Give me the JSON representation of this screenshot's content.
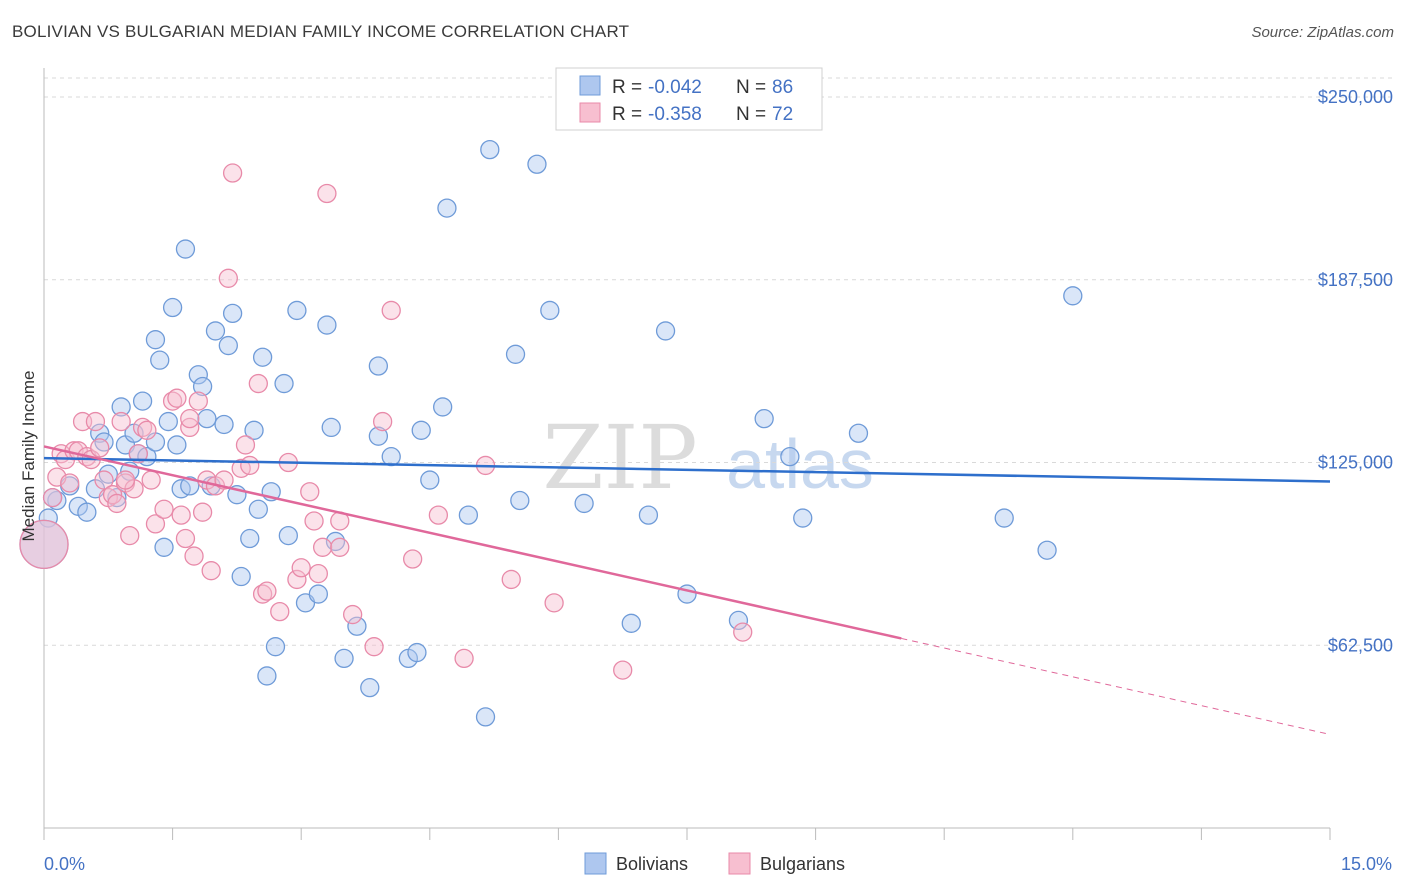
{
  "title": "BOLIVIAN VS BULGARIAN MEDIAN FAMILY INCOME CORRELATION CHART",
  "source": "Source: ZipAtlas.com",
  "watermark": {
    "zip": "ZIP",
    "atlas": "atlas"
  },
  "colors": {
    "blue_fill": "#aec7ef",
    "blue_stroke": "#6f9bd8",
    "blue_line": "#2e6fcc",
    "pink_fill": "#f7bfd0",
    "pink_stroke": "#e88aa9",
    "pink_line": "#e0689a",
    "grid": "#d9d9d9",
    "axis_text": "#4472c4"
  },
  "legend": {
    "rows": [
      {
        "r_label": "R =",
        "r_value": "-0.042",
        "n_label": "N =",
        "n_value": "86"
      },
      {
        "r_label": "R =",
        "r_value": "-0.358",
        "n_label": "N =",
        "n_value": "72"
      }
    ]
  },
  "bottom_legend": {
    "series1": "Bolivians",
    "series2": "Bulgarians"
  },
  "chart_data": {
    "type": "scatter",
    "xlabel": "",
    "ylabel": "Median Family Income",
    "xlim": [
      0,
      15
    ],
    "ylim": [
      0,
      270000
    ],
    "x_tick_labels": {
      "min": "0.0%",
      "max": "15.0%"
    },
    "y_ticks": [
      62500,
      125000,
      187500,
      250000
    ],
    "y_tick_labels": [
      "$62,500",
      "$125,000",
      "$187,500",
      "$250,000"
    ],
    "grid": true,
    "series": [
      {
        "name": "Bolivians",
        "trend": {
          "x1": 0,
          "y1": 126500,
          "x2": 15,
          "y2": 118500,
          "dashed_from": null
        },
        "points": [
          [
            0.05,
            106000
          ],
          [
            0.15,
            112000
          ],
          [
            0.3,
            117000
          ],
          [
            0.4,
            110000
          ],
          [
            0.5,
            108000
          ],
          [
            0.6,
            116000
          ],
          [
            0.65,
            135000
          ],
          [
            0.7,
            132000
          ],
          [
            0.75,
            121000
          ],
          [
            0.85,
            113000
          ],
          [
            0.9,
            144000
          ],
          [
            0.95,
            131000
          ],
          [
            1.0,
            122000
          ],
          [
            1.05,
            135000
          ],
          [
            1.1,
            128000
          ],
          [
            1.15,
            146000
          ],
          [
            1.2,
            127000
          ],
          [
            1.3,
            167000
          ],
          [
            1.35,
            160000
          ],
          [
            1.4,
            96000
          ],
          [
            1.45,
            139000
          ],
          [
            1.5,
            178000
          ],
          [
            1.55,
            131000
          ],
          [
            1.6,
            116000
          ],
          [
            1.65,
            198000
          ],
          [
            1.7,
            117000
          ],
          [
            1.8,
            155000
          ],
          [
            1.85,
            151000
          ],
          [
            1.9,
            140000
          ],
          [
            1.95,
            117000
          ],
          [
            2.0,
            170000
          ],
          [
            2.1,
            138000
          ],
          [
            2.15,
            165000
          ],
          [
            2.2,
            176000
          ],
          [
            2.25,
            114000
          ],
          [
            2.3,
            86000
          ],
          [
            2.45,
            136000
          ],
          [
            2.5,
            109000
          ],
          [
            2.55,
            161000
          ],
          [
            2.6,
            52000
          ],
          [
            2.65,
            115000
          ],
          [
            2.7,
            62000
          ],
          [
            2.8,
            152000
          ],
          [
            2.85,
            100000
          ],
          [
            2.95,
            177000
          ],
          [
            3.05,
            77000
          ],
          [
            3.2,
            80000
          ],
          [
            3.3,
            172000
          ],
          [
            3.35,
            137000
          ],
          [
            3.4,
            98000
          ],
          [
            3.5,
            58000
          ],
          [
            3.65,
            69000
          ],
          [
            3.8,
            48000
          ],
          [
            3.9,
            158000
          ],
          [
            3.9,
            134000
          ],
          [
            4.05,
            127000
          ],
          [
            4.25,
            58000
          ],
          [
            4.35,
            60000
          ],
          [
            4.4,
            136000
          ],
          [
            4.5,
            119000
          ],
          [
            4.65,
            144000
          ],
          [
            4.7,
            212000
          ],
          [
            4.95,
            107000
          ],
          [
            5.15,
            38000
          ],
          [
            5.2,
            232000
          ],
          [
            5.5,
            162000
          ],
          [
            5.55,
            112000
          ],
          [
            5.75,
            227000
          ],
          [
            5.9,
            177000
          ],
          [
            6.3,
            111000
          ],
          [
            6.85,
            70000
          ],
          [
            7.05,
            107000
          ],
          [
            7.25,
            170000
          ],
          [
            7.5,
            80000
          ],
          [
            8.1,
            71000
          ],
          [
            8.4,
            140000
          ],
          [
            8.7,
            127000
          ],
          [
            8.85,
            106000
          ],
          [
            9.5,
            135000
          ],
          [
            11.2,
            106000
          ],
          [
            11.7,
            95000
          ],
          [
            12.0,
            182000
          ],
          [
            0.0,
            97000
          ],
          [
            0.1,
            113000
          ],
          [
            1.3,
            132000
          ],
          [
            2.4,
            99000
          ]
        ]
      },
      {
        "name": "Bulgarians",
        "trend": {
          "x1": 0,
          "y1": 130500,
          "x2": 15,
          "y2": 32000,
          "dashed_from": 10
        },
        "points": [
          [
            0.0,
            97000
          ],
          [
            0.1,
            113000
          ],
          [
            0.15,
            120000
          ],
          [
            0.2,
            128000
          ],
          [
            0.25,
            126000
          ],
          [
            0.3,
            118000
          ],
          [
            0.35,
            129000
          ],
          [
            0.4,
            129000
          ],
          [
            0.45,
            139000
          ],
          [
            0.5,
            127000
          ],
          [
            0.55,
            126000
          ],
          [
            0.6,
            139000
          ],
          [
            0.65,
            130000
          ],
          [
            0.7,
            119000
          ],
          [
            0.75,
            113000
          ],
          [
            0.8,
            114000
          ],
          [
            0.85,
            111000
          ],
          [
            0.9,
            139000
          ],
          [
            0.95,
            118000
          ],
          [
            1.0,
            100000
          ],
          [
            1.05,
            116000
          ],
          [
            1.1,
            128000
          ],
          [
            1.15,
            137000
          ],
          [
            1.2,
            136000
          ],
          [
            1.25,
            119000
          ],
          [
            1.3,
            104000
          ],
          [
            1.4,
            109000
          ],
          [
            1.5,
            146000
          ],
          [
            1.55,
            147000
          ],
          [
            1.6,
            107000
          ],
          [
            1.65,
            99000
          ],
          [
            1.7,
            137000
          ],
          [
            1.75,
            93000
          ],
          [
            1.8,
            146000
          ],
          [
            1.85,
            108000
          ],
          [
            1.9,
            119000
          ],
          [
            1.95,
            88000
          ],
          [
            2.0,
            117000
          ],
          [
            2.1,
            119000
          ],
          [
            2.15,
            188000
          ],
          [
            2.2,
            224000
          ],
          [
            2.3,
            123000
          ],
          [
            2.35,
            131000
          ],
          [
            2.4,
            124000
          ],
          [
            2.5,
            152000
          ],
          [
            2.55,
            80000
          ],
          [
            2.6,
            81000
          ],
          [
            2.75,
            74000
          ],
          [
            2.85,
            125000
          ],
          [
            2.95,
            85000
          ],
          [
            3.0,
            89000
          ],
          [
            3.1,
            115000
          ],
          [
            3.15,
            105000
          ],
          [
            3.2,
            87000
          ],
          [
            3.25,
            96000
          ],
          [
            3.3,
            217000
          ],
          [
            3.45,
            105000
          ],
          [
            3.45,
            96000
          ],
          [
            3.6,
            73000
          ],
          [
            3.85,
            62000
          ],
          [
            3.95,
            139000
          ],
          [
            4.05,
            177000
          ],
          [
            4.3,
            92000
          ],
          [
            4.6,
            107000
          ],
          [
            4.9,
            58000
          ],
          [
            5.15,
            124000
          ],
          [
            5.45,
            85000
          ],
          [
            5.95,
            77000
          ],
          [
            6.75,
            54000
          ],
          [
            8.15,
            67000
          ],
          [
            0.95,
            119000
          ],
          [
            1.7,
            140000
          ]
        ]
      }
    ]
  }
}
